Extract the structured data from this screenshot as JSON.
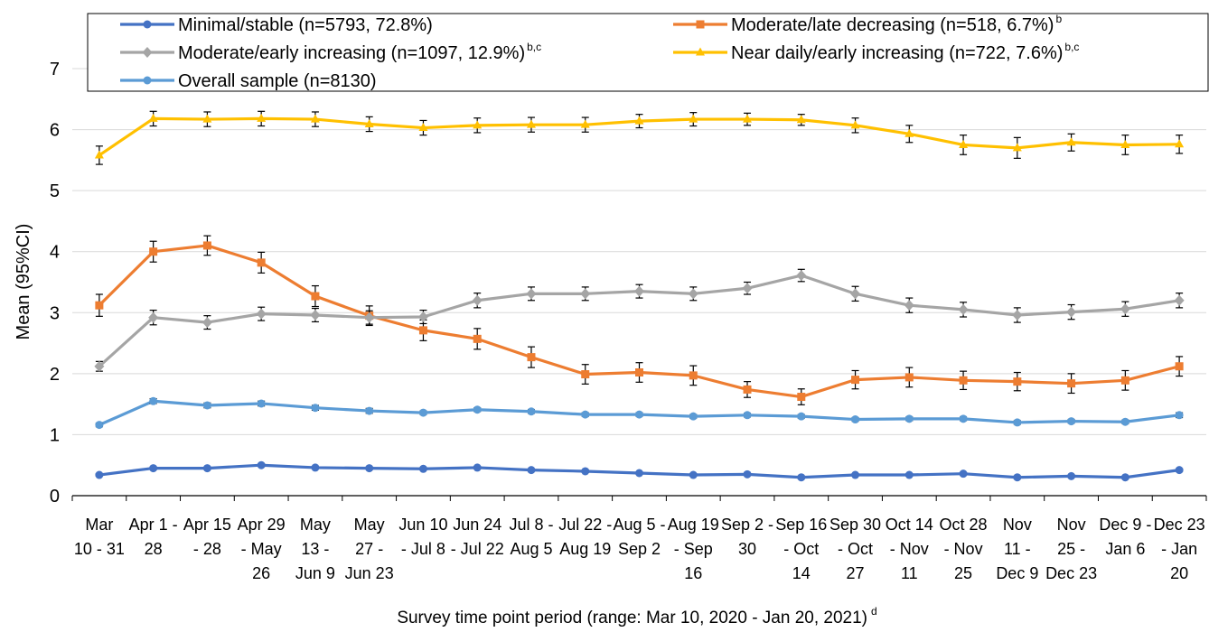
{
  "chart_data": {
    "type": "line",
    "title": "",
    "xlabel": "Survey time point period (range: Mar 10, 2020 - Jan 20, 2021)",
    "xlabel_sup": "d",
    "ylabel": "Mean (95%CI)",
    "ylim": [
      0,
      7
    ],
    "yticks": [
      0,
      1,
      2,
      3,
      4,
      5,
      6,
      7
    ],
    "grid": "horizontal",
    "legend_position": "top",
    "categories": [
      [
        "Mar",
        "10 - 31"
      ],
      [
        "Apr 1 -",
        "28"
      ],
      [
        "Apr 15",
        "- 28"
      ],
      [
        "Apr 29",
        "- May",
        "26"
      ],
      [
        "May",
        "13 -",
        "Jun 9"
      ],
      [
        "May",
        "27 -",
        "Jun 23"
      ],
      [
        "Jun 10",
        "- Jul 8"
      ],
      [
        "Jun 24",
        "- Jul 22"
      ],
      [
        "Jul 8 -",
        "Aug 5"
      ],
      [
        "Jul 22 -",
        "Aug 19"
      ],
      [
        "Aug 5 -",
        "Sep 2"
      ],
      [
        "Aug 19",
        "- Sep",
        "16"
      ],
      [
        "Sep 2 -",
        "30"
      ],
      [
        "Sep 16",
        "- Oct",
        "14"
      ],
      [
        "Sep 30",
        "- Oct",
        "27"
      ],
      [
        "Oct 14",
        "- Nov",
        "11"
      ],
      [
        "Oct 28",
        "- Nov",
        "25"
      ],
      [
        "Nov",
        "11 -",
        "Dec 9"
      ],
      [
        "Nov",
        "25 -",
        "Dec 23"
      ],
      [
        "Dec 9 -",
        "Jan 6"
      ],
      [
        "Dec 23",
        "- Jan",
        "20"
      ]
    ],
    "series": [
      {
        "name": "Minimal/stable (n=5793, 72.8%)",
        "sup": "",
        "color": "#4472C4",
        "marker": "circle",
        "values": [
          0.34,
          0.45,
          0.45,
          0.5,
          0.46,
          0.45,
          0.44,
          0.46,
          0.42,
          0.4,
          0.37,
          0.34,
          0.35,
          0.3,
          0.34,
          0.34,
          0.36,
          0.3,
          0.32,
          0.3,
          0.42
        ],
        "ci": [
          0.02,
          0.02,
          0.02,
          0.02,
          0.02,
          0.02,
          0.02,
          0.02,
          0.02,
          0.02,
          0.02,
          0.02,
          0.02,
          0.02,
          0.02,
          0.02,
          0.02,
          0.02,
          0.02,
          0.02,
          0.02
        ]
      },
      {
        "name": "Moderate/late decreasing (n=518, 6.7%)",
        "sup": "b",
        "color": "#ED7D31",
        "marker": "square",
        "values": [
          3.12,
          4.0,
          4.1,
          3.82,
          3.27,
          2.95,
          2.71,
          2.57,
          2.27,
          1.99,
          2.02,
          1.97,
          1.74,
          1.62,
          1.9,
          1.94,
          1.89,
          1.87,
          1.84,
          1.89,
          2.12
        ],
        "ci": [
          0.18,
          0.17,
          0.16,
          0.17,
          0.17,
          0.16,
          0.17,
          0.17,
          0.17,
          0.16,
          0.16,
          0.16,
          0.13,
          0.13,
          0.15,
          0.16,
          0.15,
          0.15,
          0.16,
          0.16,
          0.16
        ]
      },
      {
        "name": "Moderate/early increasing (n=1097, 12.9%)",
        "sup": "b,c",
        "color": "#A5A5A5",
        "marker": "diamond",
        "values": [
          2.12,
          2.92,
          2.84,
          2.98,
          2.96,
          2.92,
          2.93,
          3.2,
          3.31,
          3.31,
          3.35,
          3.31,
          3.4,
          3.61,
          3.31,
          3.12,
          3.05,
          2.96,
          3.01,
          3.06,
          3.2
        ],
        "ci": [
          0.08,
          0.12,
          0.11,
          0.11,
          0.11,
          0.11,
          0.11,
          0.12,
          0.11,
          0.11,
          0.11,
          0.11,
          0.1,
          0.1,
          0.12,
          0.12,
          0.12,
          0.12,
          0.12,
          0.12,
          0.12
        ]
      },
      {
        "name": "Near daily/early increasing (n=722, 7.6%)",
        "sup": "b,c",
        "color": "#FFC000",
        "marker": "triangle",
        "values": [
          5.58,
          6.18,
          6.17,
          6.18,
          6.17,
          6.09,
          6.03,
          6.07,
          6.08,
          6.08,
          6.14,
          6.17,
          6.17,
          6.16,
          6.07,
          5.93,
          5.75,
          5.7,
          5.79,
          5.75,
          5.76
        ],
        "ci": [
          0.15,
          0.12,
          0.12,
          0.12,
          0.12,
          0.12,
          0.12,
          0.12,
          0.12,
          0.12,
          0.11,
          0.11,
          0.1,
          0.09,
          0.12,
          0.14,
          0.16,
          0.17,
          0.14,
          0.16,
          0.15
        ]
      },
      {
        "name": "Overall sample (n=8130)",
        "sup": "",
        "color": "#5B9BD5",
        "marker": "circle",
        "values": [
          1.16,
          1.55,
          1.48,
          1.51,
          1.44,
          1.39,
          1.36,
          1.41,
          1.38,
          1.33,
          1.33,
          1.3,
          1.32,
          1.3,
          1.25,
          1.26,
          1.26,
          1.2,
          1.22,
          1.21,
          1.32
        ],
        "ci": [
          0.03,
          0.04,
          0.04,
          0.04,
          0.04,
          0.04,
          0.03,
          0.03,
          0.03,
          0.03,
          0.03,
          0.03,
          0.03,
          0.03,
          0.03,
          0.03,
          0.03,
          0.03,
          0.03,
          0.03,
          0.04
        ]
      }
    ]
  }
}
